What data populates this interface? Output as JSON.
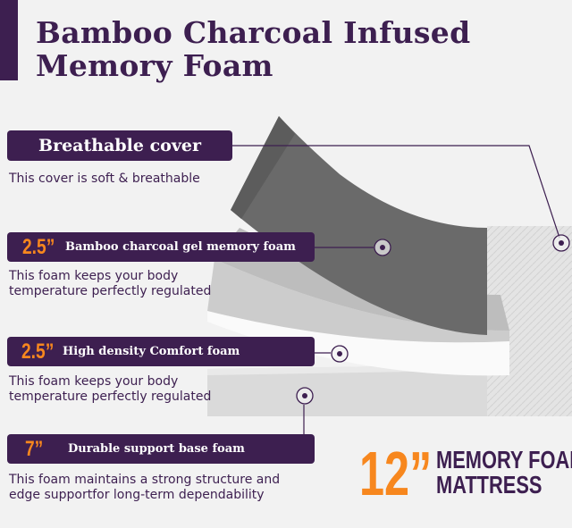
{
  "title": {
    "line1": "Bamboo Charcoal Infused",
    "line2": "Memory Foam"
  },
  "layers": [
    {
      "thickness": "",
      "label": "Breathable cover",
      "description": "This cover is soft & breathable"
    },
    {
      "thickness": "2.5”",
      "label": "Bamboo charcoal gel  memory foam",
      "description_line1": "This foam keeps your body",
      "description_line2": "temperature perfectly regulated"
    },
    {
      "thickness": "2.5”",
      "label": "High density Comfort foam",
      "description_line1": "This foam keeps your body",
      "description_line2": "temperature perfectly regulated"
    },
    {
      "thickness": "7”",
      "label": "Durable support base foam",
      "description_line1": "This foam maintains a strong structure and",
      "description_line2": "edge supportfor long-term dependability"
    }
  ],
  "badge": {
    "size": "12”",
    "line1": "MEMORY FOAM",
    "line2": "MATTRESS"
  },
  "colors": {
    "brand_purple": "#3d1f50",
    "accent_orange": "#f7871e",
    "background": "#f2f2f2"
  }
}
